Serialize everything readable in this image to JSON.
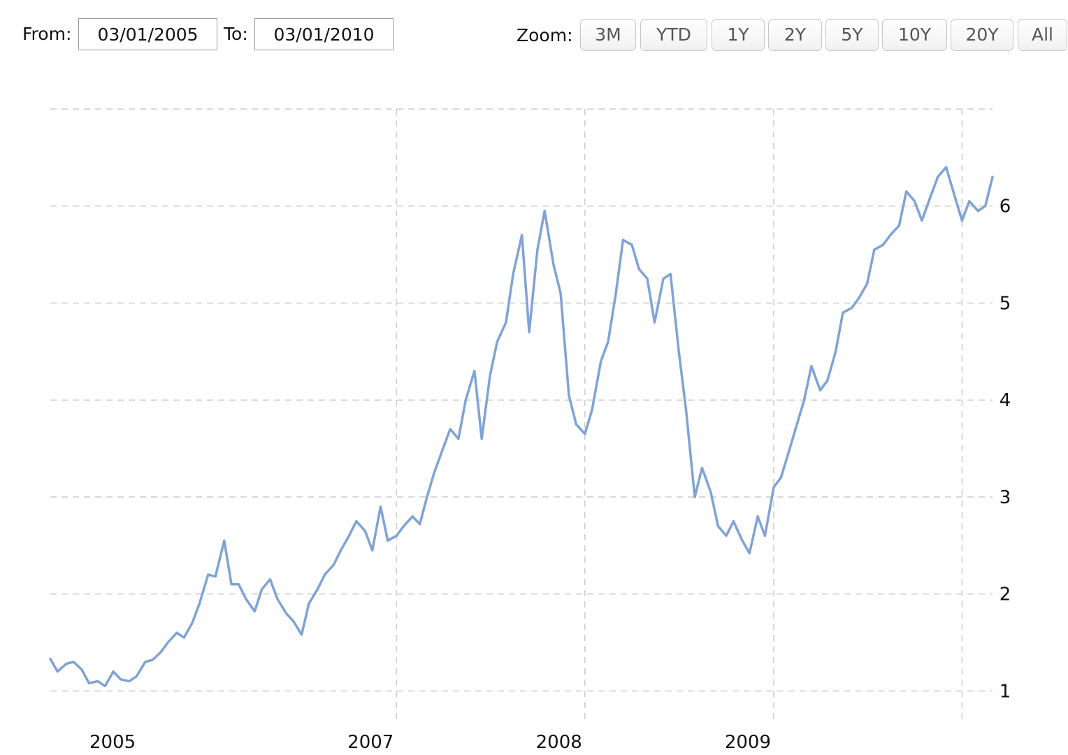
{
  "range_selector": {
    "from_label": "From:",
    "from_value": "03/01/2005",
    "to_label": "To:",
    "to_value": "03/01/2010",
    "zoom_label": "Zoom:",
    "zoom_buttons": [
      "3M",
      "YTD",
      "1Y",
      "2Y",
      "5Y",
      "10Y",
      "20Y",
      "All"
    ]
  },
  "colors": {
    "line": "#7fa3d6",
    "grid": "#cccccc"
  },
  "chart_data": {
    "type": "line",
    "title": "",
    "xlabel": "",
    "ylabel": "",
    "x_start": "2005-03-01",
    "x_end": "2010-03-01",
    "x_ticks": [
      {
        "date": "2005-03-01",
        "label": "2005",
        "grid": false
      },
      {
        "date": "2007-01-01",
        "label": "2007",
        "grid": true
      },
      {
        "date": "2008-01-01",
        "label": "2008",
        "grid": true
      },
      {
        "date": "2009-01-01",
        "label": "2009",
        "grid": true
      },
      {
        "date": "2010-01-01",
        "label": "",
        "grid": true
      }
    ],
    "ylim": [
      0.7,
      7
    ],
    "y_ticks": [
      1,
      2,
      3,
      4,
      5,
      6,
      7
    ],
    "y_tick_labels": [
      "1",
      "2",
      "3",
      "4",
      "5",
      "6",
      ""
    ],
    "grid": true,
    "series": [
      {
        "x": [
          "2005-03-01",
          "2005-03-15",
          "2005-04-01",
          "2005-04-15",
          "2005-05-01",
          "2005-05-15",
          "2005-06-01",
          "2005-06-15",
          "2005-07-01",
          "2005-07-15",
          "2005-08-01",
          "2005-08-15",
          "2005-09-01",
          "2005-09-15",
          "2005-10-01",
          "2005-10-15",
          "2005-11-01",
          "2005-11-15",
          "2005-12-01",
          "2005-12-15",
          "2006-01-01",
          "2006-01-15",
          "2006-02-01",
          "2006-02-15",
          "2006-03-01",
          "2006-03-15",
          "2006-04-01",
          "2006-04-15",
          "2006-05-01",
          "2006-05-15",
          "2006-06-01",
          "2006-06-15",
          "2006-07-01",
          "2006-07-15",
          "2006-08-01",
          "2006-08-15",
          "2006-09-01",
          "2006-09-15",
          "2006-10-01",
          "2006-10-15",
          "2006-11-01",
          "2006-11-15",
          "2006-12-01",
          "2006-12-15",
          "2007-01-01",
          "2007-01-15",
          "2007-02-01",
          "2007-02-15",
          "2007-03-01",
          "2007-03-15",
          "2007-04-01",
          "2007-04-15",
          "2007-05-01",
          "2007-05-15",
          "2007-06-01",
          "2007-06-15",
          "2007-07-01",
          "2007-07-15",
          "2007-08-01",
          "2007-08-15",
          "2007-09-01",
          "2007-09-15",
          "2007-10-01",
          "2007-10-15",
          "2007-11-01",
          "2007-11-15",
          "2007-12-01",
          "2007-12-15",
          "2008-01-01",
          "2008-01-15",
          "2008-02-01",
          "2008-02-15",
          "2008-03-01",
          "2008-03-15",
          "2008-04-01",
          "2008-04-15",
          "2008-05-01",
          "2008-05-15",
          "2008-06-01",
          "2008-06-15",
          "2008-07-01",
          "2008-07-15",
          "2008-08-01",
          "2008-08-15",
          "2008-09-01",
          "2008-09-15",
          "2008-10-01",
          "2008-10-15",
          "2008-11-01",
          "2008-11-15",
          "2008-12-01",
          "2008-12-15",
          "2009-01-01",
          "2009-01-15",
          "2009-02-01",
          "2009-02-15",
          "2009-03-01",
          "2009-03-15",
          "2009-04-01",
          "2009-04-15",
          "2009-05-01",
          "2009-05-15",
          "2009-06-01",
          "2009-06-15",
          "2009-07-01",
          "2009-07-15",
          "2009-08-01",
          "2009-08-15",
          "2009-09-01",
          "2009-09-15",
          "2009-10-01",
          "2009-10-15",
          "2009-11-01",
          "2009-11-15",
          "2009-12-01",
          "2009-12-15",
          "2010-01-01",
          "2010-01-15",
          "2010-02-01",
          "2010-02-15",
          "2010-03-01"
        ],
        "y": [
          1.33,
          1.2,
          1.28,
          1.3,
          1.22,
          1.08,
          1.1,
          1.05,
          1.2,
          1.12,
          1.1,
          1.15,
          1.3,
          1.32,
          1.4,
          1.5,
          1.6,
          1.55,
          1.7,
          1.9,
          2.2,
          2.18,
          2.55,
          2.1,
          2.1,
          1.95,
          1.82,
          2.05,
          2.15,
          1.95,
          1.8,
          1.72,
          1.58,
          1.9,
          2.05,
          2.2,
          2.3,
          2.45,
          2.6,
          2.75,
          2.65,
          2.45,
          2.9,
          2.55,
          2.6,
          2.7,
          2.8,
          2.72,
          3.0,
          3.25,
          3.5,
          3.7,
          3.6,
          4.0,
          4.3,
          3.6,
          4.25,
          4.6,
          4.8,
          5.3,
          5.7,
          4.7,
          5.55,
          5.95,
          5.4,
          5.1,
          4.05,
          3.75,
          3.65,
          3.9,
          4.4,
          4.6,
          5.1,
          5.65,
          5.6,
          5.35,
          5.25,
          4.8,
          5.25,
          5.3,
          4.5,
          3.9,
          3.0,
          3.3,
          3.05,
          2.7,
          2.6,
          2.75,
          2.55,
          2.42,
          2.8,
          2.6,
          3.1,
          3.2,
          3.5,
          3.75,
          4.0,
          4.35,
          4.1,
          4.2,
          4.5,
          4.9,
          4.95,
          5.05,
          5.2,
          5.55,
          5.6,
          5.7,
          5.8,
          6.15,
          6.05,
          5.85,
          6.1,
          6.3,
          6.4,
          6.15,
          5.85,
          6.05,
          5.95,
          6.0,
          6.3
        ]
      }
    ]
  }
}
